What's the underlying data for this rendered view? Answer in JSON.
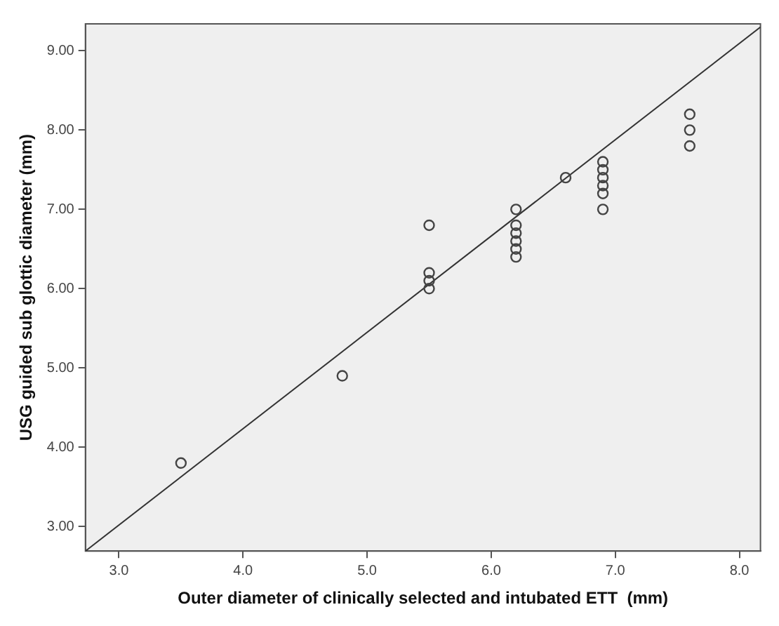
{
  "chart_data": {
    "type": "scatter",
    "xlabel": "Outer diameter of clinically selected and intubated ETT  (mm)",
    "ylabel": "USG guided sub glottic diameter (mm)",
    "xlim": [
      2.73,
      8.17
    ],
    "ylim": [
      2.69,
      9.34
    ],
    "xticks": [
      {
        "value": 3,
        "label": "3.0"
      },
      {
        "value": 4,
        "label": "4.0"
      },
      {
        "value": 5,
        "label": "5.0"
      },
      {
        "value": 6,
        "label": "6.0"
      },
      {
        "value": 7,
        "label": "7.0"
      },
      {
        "value": 8,
        "label": "8.0"
      }
    ],
    "yticks": [
      {
        "value": 3,
        "label": "3.00"
      },
      {
        "value": 4,
        "label": "4.00"
      },
      {
        "value": 5,
        "label": "5.00"
      },
      {
        "value": 6,
        "label": "6.00"
      },
      {
        "value": 7,
        "label": "7.00"
      },
      {
        "value": 8,
        "label": "8.00"
      },
      {
        "value": 9,
        "label": "9.00"
      }
    ],
    "grid": false,
    "legend": false,
    "marker": "circle",
    "series": [
      {
        "type": "scatter",
        "color": "#444444",
        "x": [
          3.5,
          4.8,
          5.5,
          5.5,
          5.5,
          5.5,
          6.2,
          6.2,
          6.2,
          6.2,
          6.2,
          6.2,
          6.6,
          6.9,
          6.9,
          6.9,
          6.9,
          6.9,
          6.9,
          7.6,
          7.6,
          7.6
        ],
        "values": [
          3.8,
          4.9,
          6.8,
          6.2,
          6.1,
          6.0,
          7.0,
          6.8,
          6.7,
          6.6,
          6.5,
          6.4,
          7.4,
          7.6,
          7.5,
          7.4,
          7.3,
          7.2,
          7.0,
          8.2,
          8.0,
          7.8
        ]
      },
      {
        "type": "line",
        "color": "#333333",
        "marker": "none",
        "x": [
          2.73,
          8.17
        ],
        "values": [
          2.69,
          9.3
        ]
      }
    ]
  }
}
